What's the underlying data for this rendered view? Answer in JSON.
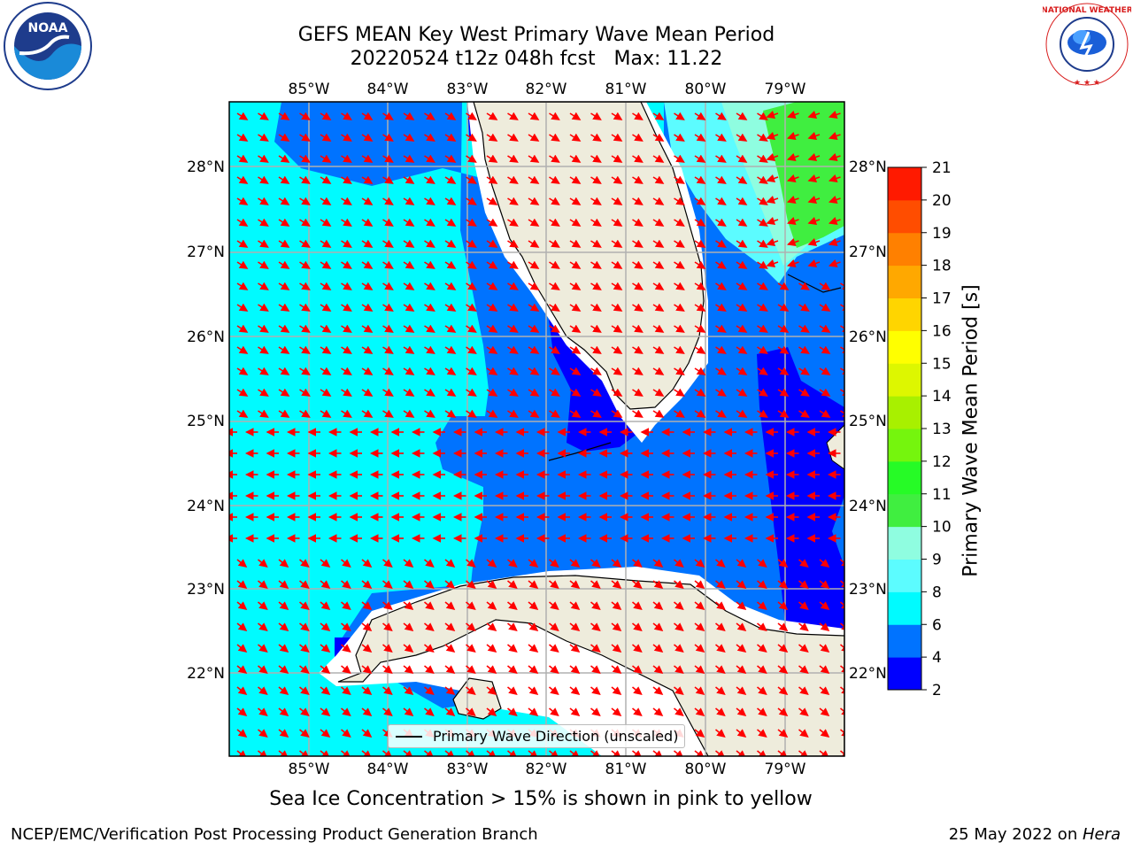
{
  "title": {
    "line1": "GEFS MEAN Key West Primary Wave Mean Period",
    "line2": "20220524 t12z 048h fcst   Max: 11.22"
  },
  "logos": {
    "left": {
      "icon": "noaa-logo-icon",
      "text": "NOAA",
      "ring_text": "NATIONAL OCEANIC AND ATMOSPHERIC ADMINISTRATION · U.S. DEPARTMENT OF COMMERCE"
    },
    "right": {
      "icon": "nws-logo-icon",
      "ring_text": "NATIONAL WEATHER SERVICE"
    }
  },
  "map": {
    "lon_ticks": [
      "85°W",
      "84°W",
      "83°W",
      "82°W",
      "81°W",
      "80°W",
      "79°W"
    ],
    "lat_ticks": [
      "28°N",
      "27°N",
      "26°N",
      "25°N",
      "24°N",
      "23°N",
      "22°N"
    ],
    "legend_label": "Primary Wave Direction (unscaled)",
    "arrow_color": "#ff0000",
    "land_color": "#eeecdc",
    "grid": true
  },
  "colorbar": {
    "label": "Primary Wave Mean Period [s]",
    "ticks": [
      "2",
      "4",
      "6",
      "8",
      "9",
      "10",
      "11",
      "12",
      "13",
      "14",
      "15",
      "16",
      "17",
      "18",
      "19",
      "20",
      "21"
    ],
    "colors": [
      "#0000ff",
      "#0073ff",
      "#00fbff",
      "#5cfcff",
      "#8ffde0",
      "#40ee40",
      "#26fb26",
      "#75f50d",
      "#a8f000",
      "#ddf700",
      "#ffff00",
      "#ffd500",
      "#ffa800",
      "#ff8000",
      "#ff4d00",
      "#ff1a00"
    ]
  },
  "note": "Sea Ice Concentration > 15% is shown in pink to yellow",
  "footer": {
    "left": "NCEP/EMC/Verification Post Processing Product Generation Branch",
    "right_date": "25 May 2022 on ",
    "right_machine": "Hera"
  }
}
